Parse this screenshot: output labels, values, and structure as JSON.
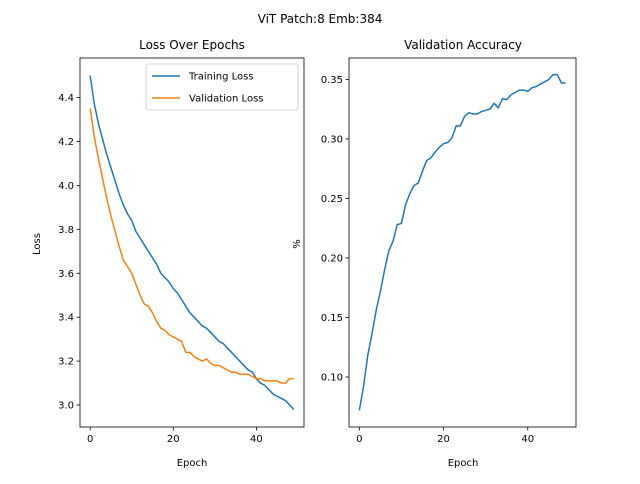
{
  "figure": {
    "suptitle": "ViT Patch:8 Emb:384"
  },
  "colors": {
    "training": "#1f77b4",
    "validation": "#ff7f0e",
    "accuracy": "#1f77b4"
  },
  "chart_data": [
    {
      "type": "line",
      "title": "Loss Over Epochs",
      "xlabel": "Epoch",
      "ylabel": "Loss",
      "xlim": [
        -2.45,
        51.45
      ],
      "ylim": [
        2.9,
        4.58
      ],
      "xticks": [
        0,
        20,
        40
      ],
      "yticks": [
        3.0,
        3.2,
        3.4,
        3.6,
        3.8,
        4.0,
        4.2,
        4.4
      ],
      "ytick_labels": [
        "3.0",
        "3.2",
        "3.4",
        "3.6",
        "3.8",
        "4.0",
        "4.2",
        "4.4"
      ],
      "legend": "upper right",
      "grid": false,
      "x": [
        0,
        1,
        2,
        3,
        4,
        5,
        6,
        7,
        8,
        9,
        10,
        11,
        12,
        13,
        14,
        15,
        16,
        17,
        18,
        19,
        20,
        21,
        22,
        23,
        24,
        25,
        26,
        27,
        28,
        29,
        30,
        31,
        32,
        33,
        34,
        35,
        36,
        37,
        38,
        39,
        40,
        41,
        42,
        43,
        44,
        45,
        46,
        47,
        48,
        49
      ],
      "series": [
        {
          "name": "Training Loss",
          "values": [
            4.5,
            4.37,
            4.28,
            4.21,
            4.14,
            4.08,
            4.02,
            3.96,
            3.91,
            3.87,
            3.84,
            3.79,
            3.76,
            3.73,
            3.7,
            3.67,
            3.64,
            3.6,
            3.58,
            3.56,
            3.53,
            3.51,
            3.48,
            3.45,
            3.42,
            3.4,
            3.38,
            3.36,
            3.35,
            3.33,
            3.31,
            3.29,
            3.28,
            3.26,
            3.24,
            3.22,
            3.2,
            3.18,
            3.16,
            3.15,
            3.12,
            3.1,
            3.09,
            3.07,
            3.05,
            3.04,
            3.03,
            3.02,
            3.0,
            2.98
          ]
        },
        {
          "name": "Validation Loss",
          "values": [
            4.35,
            4.22,
            4.12,
            4.03,
            3.94,
            3.86,
            3.79,
            3.72,
            3.66,
            3.63,
            3.6,
            3.55,
            3.5,
            3.46,
            3.45,
            3.42,
            3.38,
            3.35,
            3.34,
            3.32,
            3.31,
            3.3,
            3.29,
            3.24,
            3.24,
            3.22,
            3.21,
            3.2,
            3.21,
            3.19,
            3.18,
            3.18,
            3.17,
            3.16,
            3.15,
            3.15,
            3.14,
            3.14,
            3.14,
            3.13,
            3.12,
            3.12,
            3.11,
            3.11,
            3.11,
            3.11,
            3.1,
            3.1,
            3.12,
            3.12
          ]
        }
      ]
    },
    {
      "type": "line",
      "title": "Validation Accuracy",
      "xlabel": "Epoch",
      "ylabel": "%",
      "xlim": [
        -2.45,
        51.45
      ],
      "ylim": [
        0.058,
        0.368
      ],
      "xticks": [
        0,
        20,
        40
      ],
      "yticks": [
        0.1,
        0.15,
        0.2,
        0.25,
        0.3,
        0.35
      ],
      "ytick_labels": [
        "0.10",
        "0.15",
        "0.20",
        "0.25",
        "0.30",
        "0.35"
      ],
      "grid": false,
      "x": [
        0,
        1,
        2,
        3,
        4,
        5,
        6,
        7,
        8,
        9,
        10,
        11,
        12,
        13,
        14,
        15,
        16,
        17,
        18,
        19,
        20,
        21,
        22,
        23,
        24,
        25,
        26,
        27,
        28,
        29,
        30,
        31,
        32,
        33,
        34,
        35,
        36,
        37,
        38,
        39,
        40,
        41,
        42,
        43,
        44,
        45,
        46,
        47,
        48,
        49
      ],
      "series": [
        {
          "values": [
            0.072,
            0.092,
            0.118,
            0.136,
            0.156,
            0.172,
            0.19,
            0.206,
            0.214,
            0.228,
            0.229,
            0.245,
            0.254,
            0.261,
            0.263,
            0.273,
            0.282,
            0.284,
            0.289,
            0.293,
            0.296,
            0.297,
            0.301,
            0.311,
            0.311,
            0.319,
            0.322,
            0.321,
            0.321,
            0.323,
            0.324,
            0.325,
            0.33,
            0.326,
            0.334,
            0.333,
            0.337,
            0.339,
            0.341,
            0.341,
            0.34,
            0.343,
            0.344,
            0.346,
            0.348,
            0.35,
            0.354,
            0.354,
            0.347,
            0.347
          ]
        }
      ]
    }
  ]
}
